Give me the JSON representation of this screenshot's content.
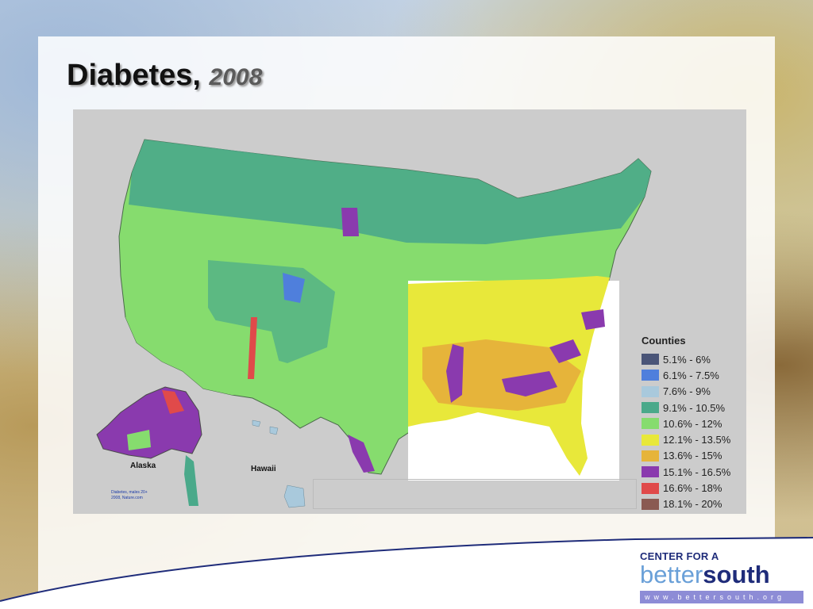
{
  "slide": {
    "title_main": "Diabetes,",
    "title_year": "2008"
  },
  "map": {
    "legend_title": "Counties",
    "legend": [
      {
        "label": "5.1% - 6%",
        "color": "#4a5578"
      },
      {
        "label": "6.1% - 7.5%",
        "color": "#4f7fdc"
      },
      {
        "label": "7.6% - 9%",
        "color": "#a9c9dc"
      },
      {
        "label": "9.1% - 10.5%",
        "color": "#4aa98a"
      },
      {
        "label": "10.6% - 12%",
        "color": "#86dc6e"
      },
      {
        "label": "12.1% - 13.5%",
        "color": "#e8e83a"
      },
      {
        "label": "13.6% - 15%",
        "color": "#e6b43a"
      },
      {
        "label": "15.1% - 16.5%",
        "color": "#8a3aae"
      },
      {
        "label": "16.6% - 18%",
        "color": "#e04a4a"
      },
      {
        "label": "18.1% - 20%",
        "color": "#8a5a52"
      }
    ],
    "alaska_label": "Alaska",
    "hawaii_label": "Hawaii",
    "source_line1": "Diabetes, males 20+",
    "source_line2": "2008, Nature.com"
  },
  "logo": {
    "top": "CENTER FOR A",
    "better": "better",
    "south": "south",
    "url": "www.bettersouth.org"
  }
}
